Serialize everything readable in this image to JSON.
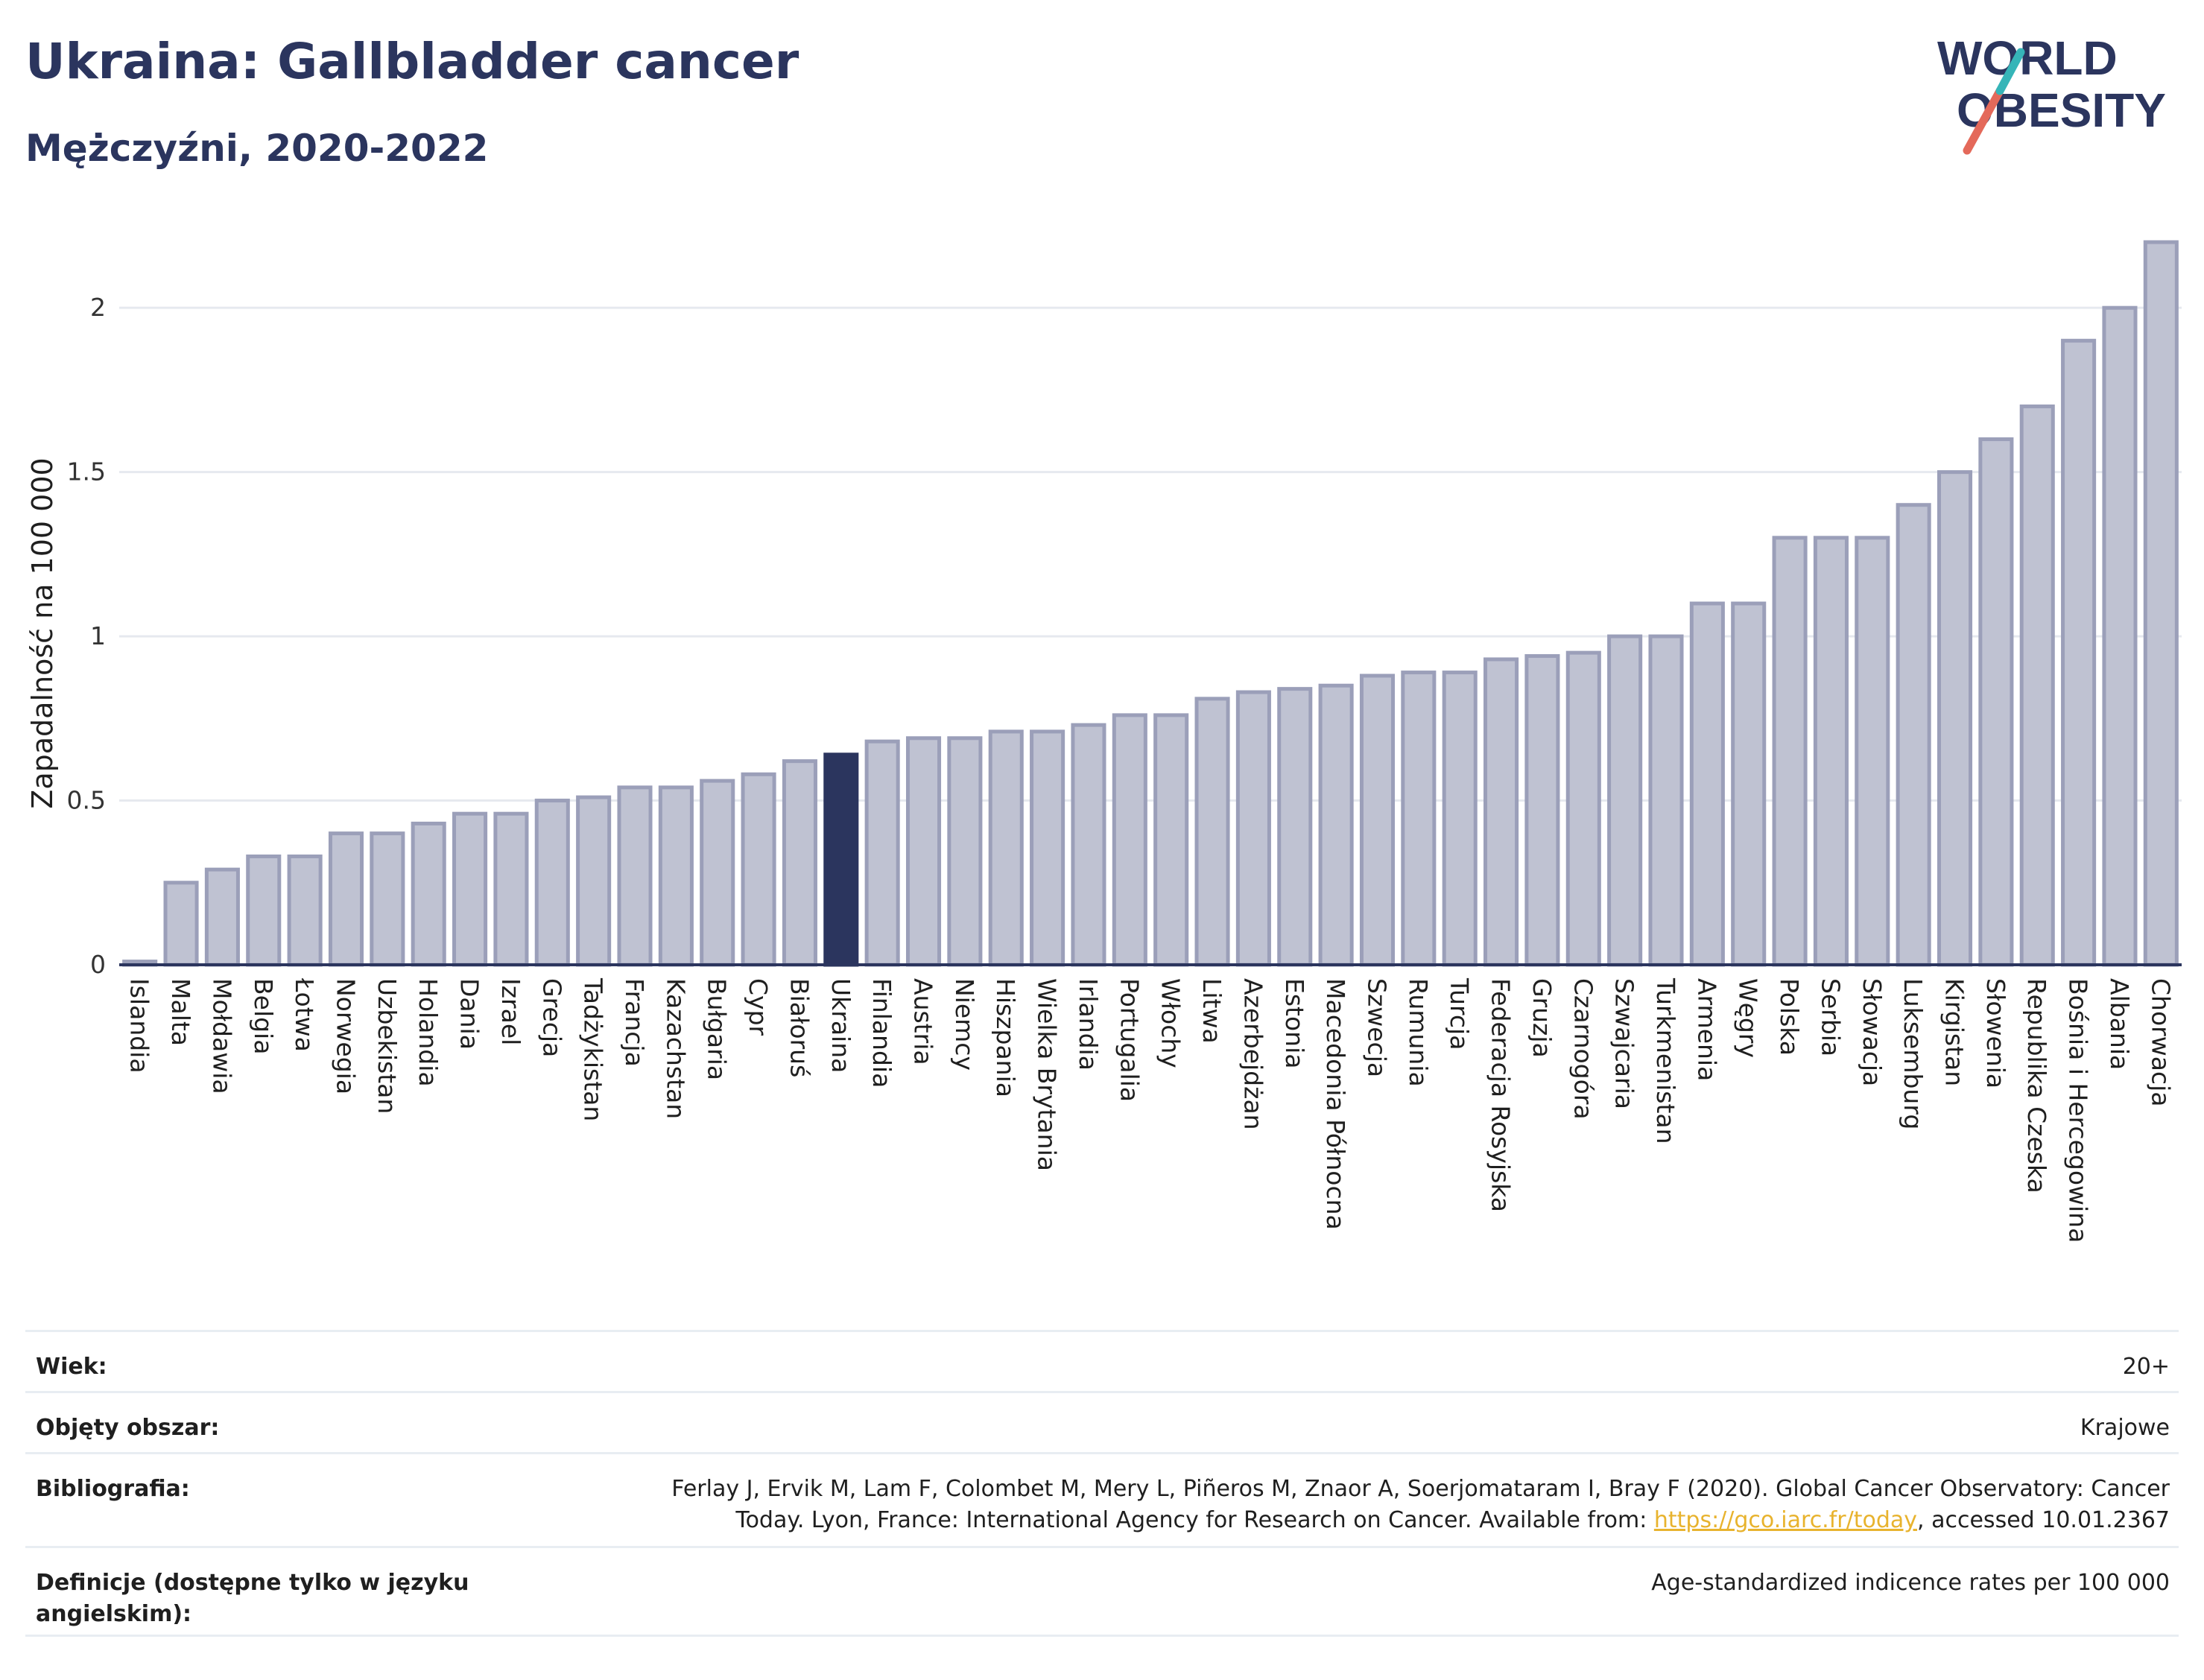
{
  "header": {
    "title": "Ukraina: Gallbladder cancer",
    "subtitle": "Mężczyźni, 2020-2022"
  },
  "logo": {
    "line1": "WORLD",
    "line2": "OBESITY",
    "colors": {
      "text": "#2b355e",
      "slash_red": "#e4695a",
      "slash_teal": "#36b5b8"
    }
  },
  "colors": {
    "bar": "#bfc2d2",
    "bar_stroke": "#9b9fb9",
    "highlight": "#2b355e",
    "grid": "#e6e9ef",
    "axis_line": "#2b355e"
  },
  "chart_data": {
    "type": "bar",
    "xlabel": "",
    "ylabel": "Zapadalność na 100 000",
    "ylim": [
      0,
      2.2
    ],
    "yticks": [
      0,
      0.5,
      1,
      1.5,
      2
    ],
    "ytick_labels": [
      "0",
      "0.5",
      "1",
      "1.5",
      "2"
    ],
    "grid": true,
    "highlight": "Ukraina",
    "categories": [
      "Islandia",
      "Malta",
      "Mołdawia",
      "Belgia",
      "Łotwa",
      "Norwegia",
      "Uzbekistan",
      "Holandia",
      "Dania",
      "Izrael",
      "Grecja",
      "Tadżykistan",
      "Francja",
      "Kazachstan",
      "Bułgaria",
      "Cypr",
      "Białoruś",
      "Ukraina",
      "Finlandia",
      "Austria",
      "Niemcy",
      "Hiszpania",
      "Wielka Brytania",
      "Irlandia",
      "Portugalia",
      "Włochy",
      "Litwa",
      "Azerbejdżan",
      "Estonia",
      "Macedonia Północna",
      "Szwecja",
      "Rumunia",
      "Turcja",
      "Federacja Rosyjska",
      "Gruzja",
      "Czarnogóra",
      "Szwajcaria",
      "Turkmenistan",
      "Armenia",
      "Węgry",
      "Polska",
      "Serbia",
      "Słowacja",
      "Luksemburg",
      "Kirgistan",
      "Słowenia",
      "Republika Czeska",
      "Bośnia i Hercegowina",
      "Albania",
      "Chorwacja"
    ],
    "values": [
      0.01,
      0.25,
      0.29,
      0.33,
      0.33,
      0.4,
      0.4,
      0.43,
      0.46,
      0.46,
      0.5,
      0.51,
      0.54,
      0.54,
      0.56,
      0.58,
      0.62,
      0.64,
      0.68,
      0.69,
      0.69,
      0.71,
      0.71,
      0.73,
      0.76,
      0.76,
      0.81,
      0.83,
      0.84,
      0.85,
      0.88,
      0.89,
      0.89,
      0.93,
      0.94,
      0.95,
      1.0,
      1.0,
      1.1,
      1.1,
      1.3,
      1.3,
      1.3,
      1.4,
      1.5,
      1.6,
      1.7,
      1.9,
      2.0,
      2.2
    ]
  },
  "info": {
    "age_label": "Wiek:",
    "age_value": "20+",
    "area_label": "Objęty obszar:",
    "area_value": "Krajowe",
    "bib_label": "Bibliografia:",
    "bib_line1": "Ferlay J, Ervik M, Lam F, Colombet M, Mery L, Piñeros M, Znaor A, Soerjomataram I, Bray F (2020). Global Cancer Observatory: Cancer",
    "bib_line2_pre": "Today. Lyon, France: International Agency for Research on Cancer. Available from: ",
    "bib_link": "https://gco.iarc.fr/today",
    "bib_line2_post": ", accessed 10.01.2367",
    "def_label": "Definicje (dostępne tylko w języku angielskim):",
    "def_value": "Age-standardized indicence rates per 100 000"
  }
}
